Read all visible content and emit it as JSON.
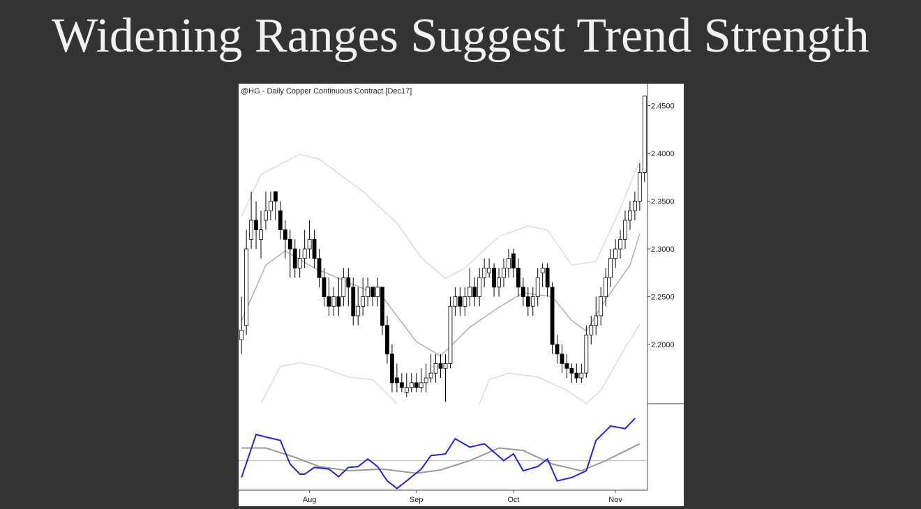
{
  "title": "Widening Ranges Suggest Trend Strength",
  "chart_data": {
    "type": "candlestick",
    "title": "@HG - Daily  Copper Continuous Contract [Dec17]",
    "open": [
      2.205,
      2.22,
      2.31,
      2.33,
      2.31,
      2.33,
      2.34,
      2.36,
      2.34,
      2.32,
      2.31,
      2.3,
      2.28,
      2.29,
      2.3,
      2.31,
      2.29,
      2.27,
      2.25,
      2.24,
      2.25,
      2.25,
      2.27,
      2.26,
      2.23,
      2.24,
      2.25,
      2.26,
      2.25,
      2.26,
      2.22,
      2.19,
      2.165,
      2.16,
      2.15,
      2.155,
      2.16,
      2.155,
      2.16,
      2.165,
      2.17,
      2.18,
      2.175,
      2.18,
      2.24,
      2.25,
      2.24,
      2.25,
      2.26,
      2.25,
      2.27,
      2.275,
      2.28,
      2.26,
      2.27,
      2.28,
      2.295,
      2.28,
      2.26,
      2.25,
      2.24,
      2.25,
      2.275,
      2.28,
      2.26,
      2.2,
      2.19,
      2.18,
      2.175,
      2.17,
      2.165,
      2.17,
      2.21,
      2.22,
      2.23,
      2.25,
      2.27,
      2.29,
      2.3,
      2.31,
      2.33,
      2.34,
      2.35,
      2.38
    ],
    "high": [
      2.25,
      2.32,
      2.36,
      2.35,
      2.34,
      2.36,
      2.36,
      2.36,
      2.35,
      2.33,
      2.32,
      2.31,
      2.3,
      2.32,
      2.33,
      2.32,
      2.3,
      2.28,
      2.27,
      2.26,
      2.27,
      2.28,
      2.28,
      2.27,
      2.26,
      2.27,
      2.27,
      2.26,
      2.27,
      2.26,
      2.23,
      2.2,
      2.18,
      2.17,
      2.17,
      2.17,
      2.17,
      2.175,
      2.18,
      2.19,
      2.19,
      2.19,
      2.19,
      2.25,
      2.26,
      2.26,
      2.26,
      2.28,
      2.27,
      2.28,
      2.29,
      2.29,
      2.285,
      2.28,
      2.29,
      2.3,
      2.3,
      2.29,
      2.27,
      2.26,
      2.26,
      2.28,
      2.285,
      2.285,
      2.265,
      2.21,
      2.2,
      2.19,
      2.18,
      2.18,
      2.18,
      2.22,
      2.23,
      2.25,
      2.26,
      2.28,
      2.3,
      2.31,
      2.32,
      2.34,
      2.35,
      2.36,
      2.39,
      2.46
    ],
    "low": [
      2.19,
      2.21,
      2.3,
      2.3,
      2.29,
      2.32,
      2.33,
      2.33,
      2.31,
      2.29,
      2.27,
      2.27,
      2.27,
      2.28,
      2.29,
      2.28,
      2.26,
      2.24,
      2.23,
      2.23,
      2.23,
      2.24,
      2.24,
      2.22,
      2.22,
      2.23,
      2.24,
      2.24,
      2.24,
      2.21,
      2.18,
      2.15,
      2.15,
      2.15,
      2.145,
      2.15,
      2.15,
      2.15,
      2.15,
      2.16,
      2.16,
      2.165,
      2.14,
      2.175,
      2.23,
      2.23,
      2.23,
      2.24,
      2.24,
      2.24,
      2.26,
      2.27,
      2.25,
      2.25,
      2.26,
      2.27,
      2.27,
      2.25,
      2.24,
      2.23,
      2.23,
      2.24,
      2.26,
      2.25,
      2.19,
      2.18,
      2.17,
      2.165,
      2.16,
      2.16,
      2.16,
      2.165,
      2.2,
      2.21,
      2.22,
      2.24,
      2.26,
      2.28,
      2.29,
      2.3,
      2.32,
      2.33,
      2.34,
      2.37
    ],
    "close": [
      2.215,
      2.3,
      2.33,
      2.32,
      2.32,
      2.34,
      2.35,
      2.35,
      2.32,
      2.31,
      2.3,
      2.28,
      2.29,
      2.3,
      2.31,
      2.29,
      2.27,
      2.25,
      2.24,
      2.25,
      2.24,
      2.27,
      2.26,
      2.23,
      2.24,
      2.25,
      2.26,
      2.25,
      2.26,
      2.22,
      2.19,
      2.16,
      2.16,
      2.155,
      2.155,
      2.16,
      2.155,
      2.16,
      2.165,
      2.17,
      2.18,
      2.175,
      2.18,
      2.24,
      2.25,
      2.24,
      2.25,
      2.26,
      2.25,
      2.27,
      2.28,
      2.28,
      2.26,
      2.27,
      2.28,
      2.29,
      2.28,
      2.26,
      2.25,
      2.24,
      2.25,
      2.27,
      2.28,
      2.26,
      2.2,
      2.19,
      2.18,
      2.175,
      2.17,
      2.165,
      2.17,
      2.21,
      2.22,
      2.23,
      2.25,
      2.27,
      2.29,
      2.3,
      2.31,
      2.33,
      2.34,
      2.35,
      2.38,
      2.46
    ],
    "up_color": "#ffffff",
    "down_color": "#000000",
    "xlim": [
      -0.6,
      83.6
    ],
    "xticks": [
      {
        "value": 14,
        "label": "Aug"
      },
      {
        "value": 36,
        "label": "Sep"
      },
      {
        "value": 56,
        "label": "Oct"
      },
      {
        "value": 77,
        "label": "Nov"
      }
    ],
    "ylim": [
      2.138,
      2.473
    ],
    "yticks": [
      {
        "value": 2.2,
        "label": "2.2000"
      },
      {
        "value": 2.25,
        "label": "2.2500"
      },
      {
        "value": 2.3,
        "label": "2.3000"
      },
      {
        "value": 2.35,
        "label": "2.3500"
      },
      {
        "value": 2.4,
        "label": "2.4000"
      },
      {
        "value": 2.45,
        "label": "2.4500"
      }
    ],
    "overlays": [
      {
        "color": "#dddddd",
        "x": [
          0,
          4,
          12,
          16,
          25,
          32,
          37,
          42,
          46,
          53,
          59,
          63,
          68,
          73,
          78,
          82
        ],
        "values": [
          2.334,
          2.378,
          2.399,
          2.394,
          2.36,
          2.327,
          2.291,
          2.269,
          2.28,
          2.313,
          2.324,
          2.32,
          2.283,
          2.287,
          2.342,
          2.393
        ]
      },
      {
        "color": "#b0b0b0",
        "x": [
          0,
          5,
          9,
          15,
          22,
          29,
          36,
          41,
          47,
          53,
          58,
          64,
          68,
          71,
          75,
          80,
          82
        ],
        "values": [
          2.225,
          2.283,
          2.298,
          2.28,
          2.265,
          2.25,
          2.203,
          2.188,
          2.218,
          2.239,
          2.254,
          2.25,
          2.225,
          2.214,
          2.247,
          2.283,
          2.316
        ]
      },
      {
        "color": "#dddddd",
        "x": [
          4,
          8,
          12,
          16,
          22,
          27,
          32,
          40,
          49,
          51,
          55,
          61,
          67,
          71,
          74,
          78,
          82
        ],
        "values": [
          2.138,
          2.177,
          2.181,
          2.177,
          2.166,
          2.163,
          2.138,
          null,
          2.138,
          2.163,
          2.17,
          2.166,
          2.152,
          2.138,
          2.152,
          2.188,
          2.221
        ]
      }
    ],
    "indicator": {
      "ylim": [
        0,
        100
      ],
      "reference": 35,
      "reference_color": "#bbbbbb",
      "series": [
        {
          "color": "#999999",
          "x": [
            0,
            5,
            11,
            16,
            22,
            29,
            36,
            41,
            47,
            53,
            58,
            64,
            70,
            75,
            82
          ],
          "values": [
            50,
            50,
            39,
            28,
            23,
            25,
            20,
            24,
            35,
            50,
            47,
            31,
            23,
            35,
            55
          ]
        },
        {
          "color": "#2222dd",
          "x": [
            0,
            3,
            5,
            8,
            10,
            12,
            13,
            15,
            18,
            20,
            22,
            24,
            26,
            28,
            30,
            32,
            34,
            37,
            39,
            42,
            44,
            47,
            50,
            52,
            54,
            56,
            58,
            61,
            63,
            65,
            68,
            71,
            73,
            76,
            79,
            81
          ],
          "values": [
            15,
            66,
            63,
            59,
            31,
            19,
            19,
            27,
            25,
            16,
            27,
            28,
            37,
            28,
            11,
            2,
            11,
            25,
            41,
            43,
            61,
            51,
            55,
            45,
            35,
            43,
            23,
            28,
            37,
            11,
            15,
            23,
            59,
            76,
            73,
            85
          ]
        }
      ]
    }
  }
}
